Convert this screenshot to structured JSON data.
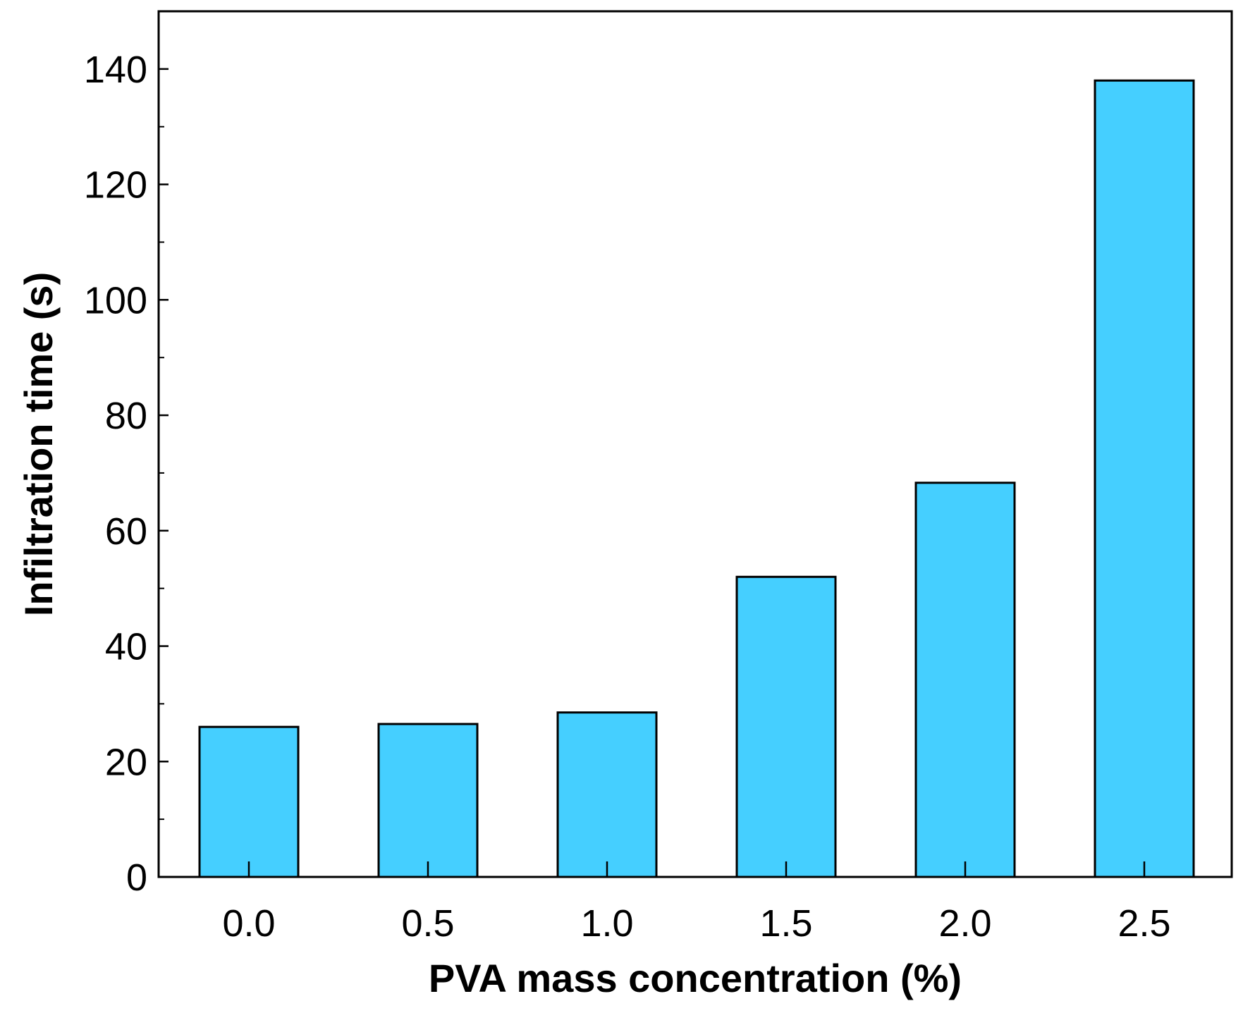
{
  "chart_data": {
    "type": "bar",
    "title": "",
    "xlabel": "PVA mass concentration (%)",
    "ylabel": "Infiltration time (s)",
    "categories": [
      "0.0",
      "0.5",
      "1.0",
      "1.5",
      "2.0",
      "2.5"
    ],
    "values": [
      26,
      26.5,
      28.5,
      52,
      68.3,
      138
    ],
    "ylim": [
      0,
      150
    ],
    "yticks": [
      0,
      20,
      40,
      60,
      80,
      100,
      120,
      140
    ],
    "yminor_step": 10,
    "grid": false,
    "legend": "none",
    "colors": {
      "bar_fill": "#45cfff",
      "bar_edge": "#000000",
      "axis": "#000000"
    }
  }
}
